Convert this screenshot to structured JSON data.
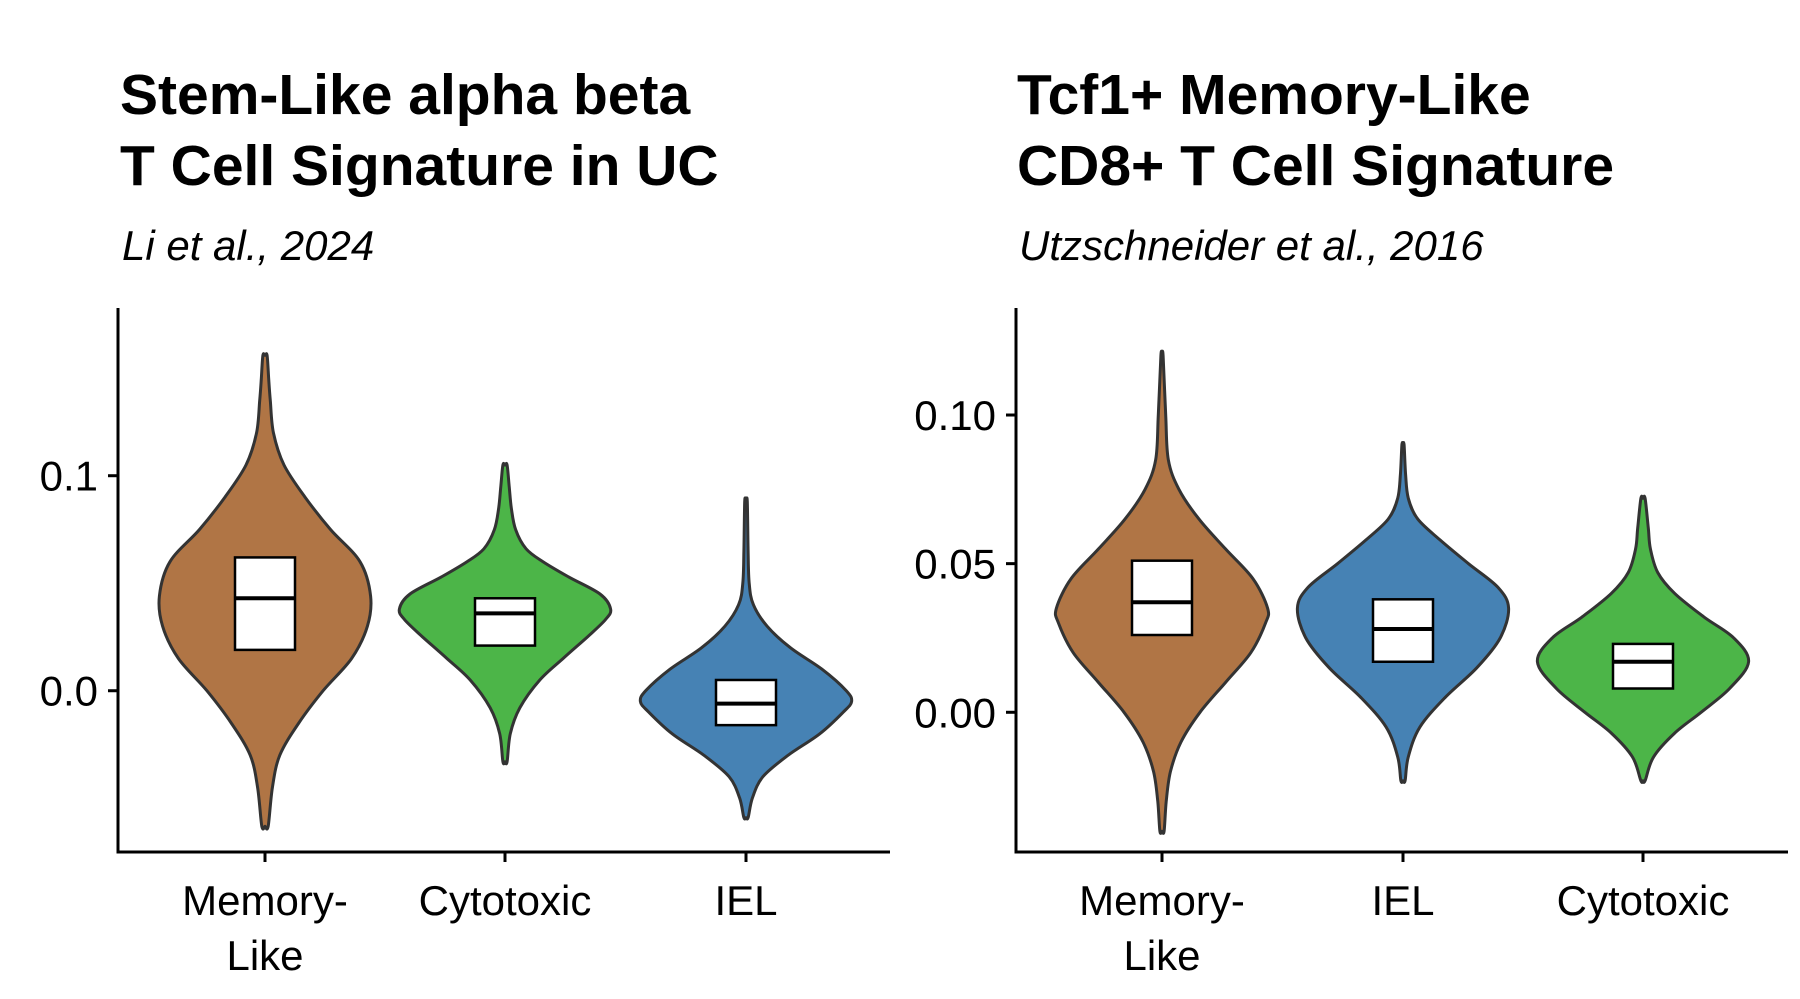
{
  "chart_data": [
    {
      "type": "violin",
      "title_lines": [
        "Stem-Like alpha beta",
        "T Cell Signature in UC"
      ],
      "subtitle": "Li et al., 2024",
      "xlabel": "",
      "ylabel": "",
      "ylim": [
        -0.075,
        0.178
      ],
      "y_ticks": [
        0.0,
        0.1
      ],
      "y_tick_labels": [
        "0.0",
        "0.1"
      ],
      "grid": false,
      "legend": "none",
      "categories": [
        {
          "label_lines": [
            "Memory-",
            "Like"
          ],
          "color": "#B07545",
          "min": -0.063,
          "max": 0.156,
          "q1": 0.019,
          "median": 0.043,
          "q3": 0.062,
          "max_width_at": 0.044,
          "half_width": 0.44,
          "profile": [
            [
              -0.063,
              0.03
            ],
            [
              -0.045,
              0.07
            ],
            [
              -0.03,
              0.14
            ],
            [
              -0.015,
              0.32
            ],
            [
              0.0,
              0.55
            ],
            [
              0.015,
              0.82
            ],
            [
              0.03,
              0.97
            ],
            [
              0.044,
              1.0
            ],
            [
              0.06,
              0.9
            ],
            [
              0.075,
              0.62
            ],
            [
              0.09,
              0.38
            ],
            [
              0.105,
              0.18
            ],
            [
              0.12,
              0.08
            ],
            [
              0.135,
              0.05
            ],
            [
              0.145,
              0.035
            ],
            [
              0.156,
              0.02
            ]
          ]
        },
        {
          "label_lines": [
            "Cytotoxic"
          ],
          "color": "#4CB548",
          "min": -0.033,
          "max": 0.105,
          "q1": 0.021,
          "median": 0.036,
          "q3": 0.043,
          "max_width_at": 0.038,
          "half_width": 0.44,
          "profile": [
            [
              -0.033,
              0.02
            ],
            [
              -0.02,
              0.05
            ],
            [
              -0.008,
              0.14
            ],
            [
              0.005,
              0.33
            ],
            [
              0.015,
              0.55
            ],
            [
              0.025,
              0.78
            ],
            [
              0.033,
              0.95
            ],
            [
              0.038,
              1.0
            ],
            [
              0.045,
              0.9
            ],
            [
              0.053,
              0.6
            ],
            [
              0.06,
              0.36
            ],
            [
              0.066,
              0.2
            ],
            [
              0.075,
              0.1
            ],
            [
              0.085,
              0.06
            ],
            [
              0.095,
              0.04
            ],
            [
              0.105,
              0.02
            ]
          ]
        },
        {
          "label_lines": [
            "IEL"
          ],
          "color": "#4682B4",
          "min": -0.059,
          "max": 0.088,
          "q1": -0.016,
          "median": -0.006,
          "q3": 0.005,
          "max_width_at": -0.005,
          "half_width": 0.44,
          "profile": [
            [
              -0.059,
              0.02
            ],
            [
              -0.05,
              0.06
            ],
            [
              -0.04,
              0.16
            ],
            [
              -0.03,
              0.4
            ],
            [
              -0.02,
              0.7
            ],
            [
              -0.01,
              0.92
            ],
            [
              -0.005,
              1.0
            ],
            [
              0.0,
              0.95
            ],
            [
              0.01,
              0.72
            ],
            [
              0.02,
              0.42
            ],
            [
              0.03,
              0.2
            ],
            [
              0.04,
              0.07
            ],
            [
              0.05,
              0.03
            ],
            [
              0.065,
              0.02
            ],
            [
              0.088,
              0.012
            ]
          ]
        }
      ]
    },
    {
      "type": "violin",
      "title_lines": [
        "Tcf1+ Memory-Like",
        "CD8+ T Cell Signature"
      ],
      "subtitle": "Utzschneider et al., 2016",
      "xlabel": "",
      "ylabel": "",
      "ylim": [
        -0.047,
        0.136
      ],
      "y_ticks": [
        0.0,
        0.05,
        0.1
      ],
      "y_tick_labels": [
        "0.00",
        "0.05",
        "0.10"
      ],
      "grid": false,
      "legend": "none",
      "categories": [
        {
          "label_lines": [
            "Memory-",
            "Like"
          ],
          "color": "#B07545",
          "min": -0.04,
          "max": 0.12,
          "q1": 0.026,
          "median": 0.037,
          "q3": 0.051,
          "max_width_at": 0.035,
          "half_width": 0.44,
          "profile": [
            [
              -0.04,
              0.02
            ],
            [
              -0.03,
              0.04
            ],
            [
              -0.02,
              0.08
            ],
            [
              -0.01,
              0.18
            ],
            [
              0.0,
              0.36
            ],
            [
              0.01,
              0.6
            ],
            [
              0.02,
              0.84
            ],
            [
              0.03,
              0.98
            ],
            [
              0.035,
              1.0
            ],
            [
              0.045,
              0.86
            ],
            [
              0.055,
              0.6
            ],
            [
              0.065,
              0.35
            ],
            [
              0.075,
              0.16
            ],
            [
              0.085,
              0.06
            ],
            [
              0.1,
              0.035
            ],
            [
              0.12,
              0.01
            ]
          ]
        },
        {
          "label_lines": [
            "IEL"
          ],
          "color": "#4682B4",
          "min": -0.023,
          "max": 0.09,
          "q1": 0.017,
          "median": 0.028,
          "q3": 0.038,
          "max_width_at": 0.035,
          "half_width": 0.44,
          "profile": [
            [
              -0.023,
              0.02
            ],
            [
              -0.015,
              0.05
            ],
            [
              -0.005,
              0.16
            ],
            [
              0.005,
              0.4
            ],
            [
              0.015,
              0.7
            ],
            [
              0.025,
              0.92
            ],
            [
              0.035,
              1.0
            ],
            [
              0.042,
              0.9
            ],
            [
              0.05,
              0.62
            ],
            [
              0.058,
              0.35
            ],
            [
              0.065,
              0.14
            ],
            [
              0.072,
              0.05
            ],
            [
              0.08,
              0.025
            ],
            [
              0.09,
              0.01
            ]
          ]
        },
        {
          "label_lines": [
            "Cytotoxic"
          ],
          "color": "#4CB548",
          "min": -0.023,
          "max": 0.072,
          "q1": 0.008,
          "median": 0.017,
          "q3": 0.023,
          "max_width_at": 0.017,
          "half_width": 0.44,
          "profile": [
            [
              -0.023,
              0.02
            ],
            [
              -0.015,
              0.1
            ],
            [
              -0.007,
              0.3
            ],
            [
              0.0,
              0.55
            ],
            [
              0.008,
              0.82
            ],
            [
              0.017,
              1.0
            ],
            [
              0.025,
              0.86
            ],
            [
              0.032,
              0.58
            ],
            [
              0.04,
              0.3
            ],
            [
              0.047,
              0.14
            ],
            [
              0.055,
              0.07
            ],
            [
              0.062,
              0.05
            ],
            [
              0.072,
              0.02
            ]
          ]
        }
      ]
    }
  ]
}
